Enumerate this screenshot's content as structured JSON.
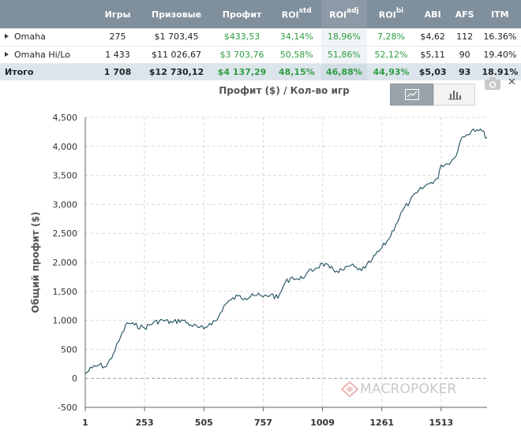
{
  "table": {
    "headers": {
      "name": "",
      "games": "Игры",
      "prize": "Призовые",
      "profit": "Профит",
      "roi_std": "ROI",
      "roi_std_sup": "std",
      "roi_adj": "ROI",
      "roi_adj_sup": "adj",
      "roi_bi": "ROI",
      "roi_bi_sup": "bi",
      "abi": "ABI",
      "afs": "AFS",
      "itm": "ITM"
    },
    "rows": [
      {
        "name": "Omaha",
        "games": "275",
        "prize": "$1 703,45",
        "profit": "$433,53",
        "roi_std": "34,14%",
        "roi_adj": "18,96%",
        "roi_bi": "7,28%",
        "abi": "$4,62",
        "afs": "112",
        "itm": "16.36%"
      },
      {
        "name": "Omaha Hi/Lo",
        "games": "1 433",
        "prize": "$11 026,67",
        "profit": "$3 703,76",
        "roi_std": "50,58%",
        "roi_adj": "51,86%",
        "roi_bi": "52,12%",
        "abi": "$5,11",
        "afs": "90",
        "itm": "19.40%"
      }
    ],
    "total": {
      "name": "Итого",
      "games": "1 708",
      "prize": "$12 730,12",
      "profit": "$4 137,29",
      "roi_std": "48,15%",
      "roi_adj": "46,88%",
      "roi_bi": "44,93%",
      "abi": "$5,03",
      "afs": "93",
      "itm": "18.91%"
    }
  },
  "chart_controls": {
    "active_view": "line",
    "views": [
      "line",
      "bar"
    ],
    "icons": [
      "chart-line-icon",
      "chart-bar-icon",
      "camera-icon",
      "close-icon"
    ]
  },
  "watermark": {
    "text": "MACROPOKER"
  },
  "colors": {
    "header_bg": "#7f8f9c",
    "total_row_bg": "#dde5ec",
    "positive_green": "#2e9e40",
    "line_color": "#1f4e5f"
  },
  "chart_data": {
    "type": "line",
    "title": "Профит ($) / Кол-во игр",
    "xlabel": "",
    "ylabel": "Общий профит ($)",
    "xlim": [
      1,
      1708
    ],
    "ylim": [
      -500,
      4500
    ],
    "x_ticks": [
      1,
      253,
      505,
      757,
      1009,
      1261,
      1513
    ],
    "y_ticks": [
      -500,
      0,
      500,
      1000,
      1500,
      2000,
      2500,
      3000,
      3500,
      4000,
      4500
    ],
    "y_tick_labels": [
      "-500",
      "0",
      "500",
      "1,000",
      "1,500",
      "2,000",
      "2,500",
      "3,000",
      "3,500",
      "4,000",
      "4,500"
    ],
    "x_tick_labels": [
      "1",
      "253",
      "505",
      "757",
      "1009",
      "1261",
      "1513"
    ],
    "grid": true,
    "legend": "none",
    "series": [
      {
        "x": [
          1,
          30,
          60,
          90,
          120,
          150,
          180,
          210,
          253,
          290,
          330,
          370,
          410,
          450,
          480,
          505,
          530,
          560,
          590,
          620,
          650,
          680,
          710,
          757,
          790,
          820,
          850,
          880,
          910,
          940,
          980,
          1009,
          1040,
          1070,
          1100,
          1130,
          1160,
          1190,
          1220,
          1261,
          1290,
          1320,
          1350,
          1380,
          1410,
          1440,
          1470,
          1500,
          1513,
          1540,
          1570,
          1600,
          1620,
          1650,
          1680,
          1708
        ],
        "y": [
          80,
          180,
          230,
          200,
          420,
          700,
          960,
          920,
          870,
          960,
          1000,
          960,
          1010,
          920,
          880,
          850,
          950,
          1000,
          1250,
          1350,
          1420,
          1380,
          1460,
          1400,
          1450,
          1380,
          1650,
          1750,
          1700,
          1800,
          1900,
          1980,
          1900,
          1850,
          1870,
          1950,
          1870,
          1900,
          2050,
          2250,
          2400,
          2650,
          2900,
          3050,
          3200,
          3300,
          3380,
          3450,
          3680,
          3700,
          3800,
          4150,
          4200,
          4300,
          4300,
          4150
        ]
      }
    ]
  }
}
